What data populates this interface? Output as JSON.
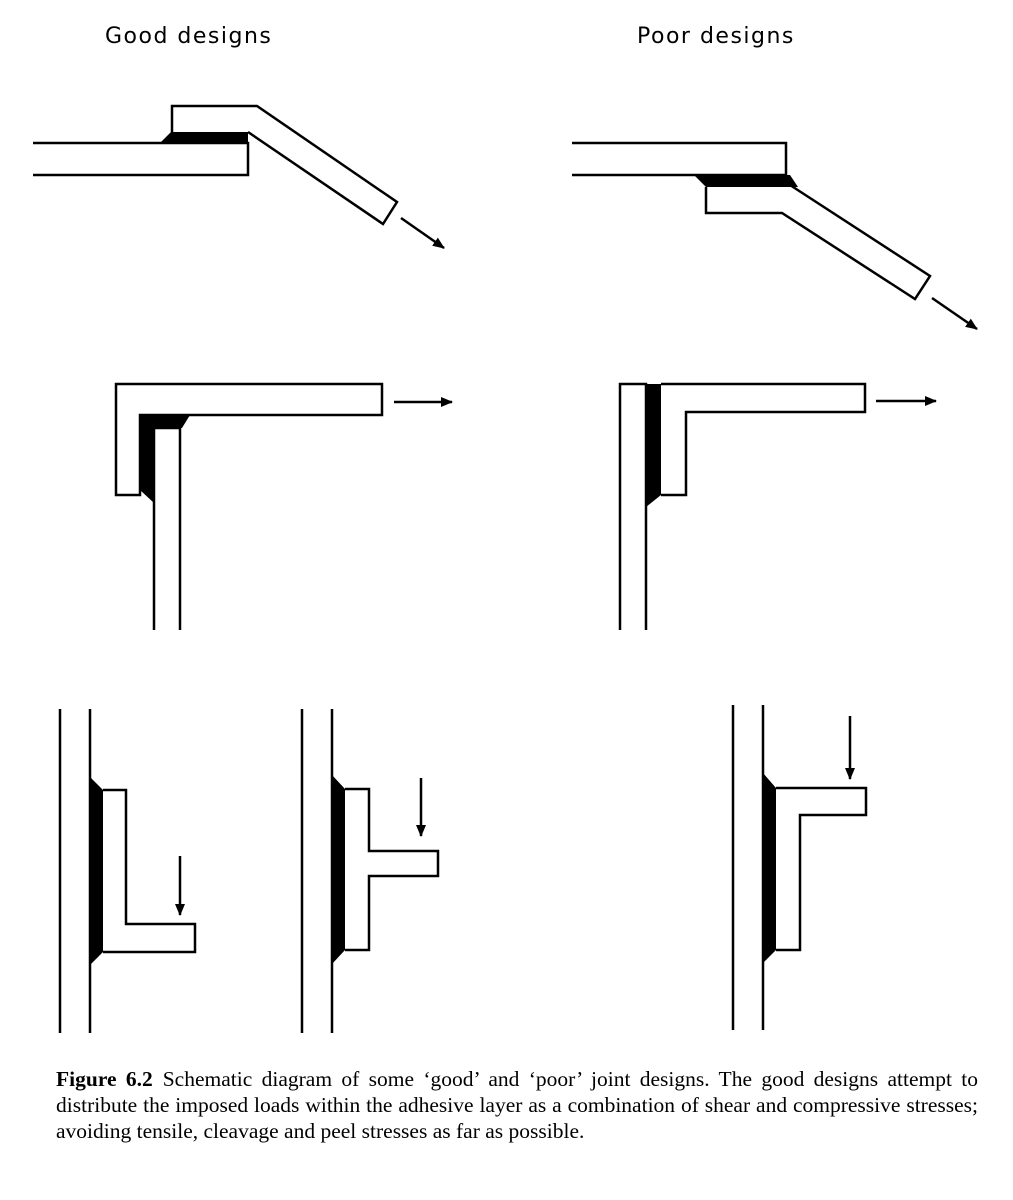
{
  "headings": {
    "good": "Good designs",
    "poor": "Poor designs"
  },
  "caption": {
    "label": "Figure 6.2",
    "text": "Schematic diagram of some ‘good’ and ‘poor’ joint designs. The good designs attempt to distribute the imposed loads within the adhesive layer as a combination of shear and compressive stresses; avoiding tensile, cleavage and peel stresses as far as possible."
  },
  "colors": {
    "ink": "#000000",
    "adhesive": "#000000",
    "background": "#ffffff"
  }
}
